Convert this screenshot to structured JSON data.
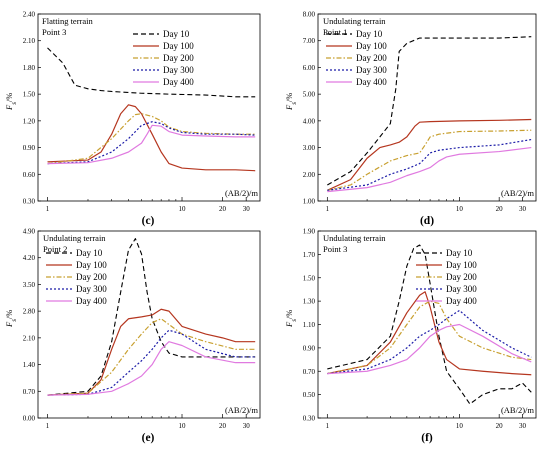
{
  "figure": {
    "legend_labels": [
      "Day 10",
      "Day 100",
      "Day 200",
      "Day 300",
      "Day 400"
    ],
    "series_colors": [
      "#000000",
      "#b5361f",
      "#c8a030",
      "#1c1ca8",
      "#e07ae0"
    ],
    "series_dash": [
      "5,3",
      "",
      "5,2,1.5,2",
      "2,2",
      ""
    ],
    "x_axis_unit": "(AB/2)/m",
    "x_tick_labels": [
      "1",
      "10",
      "20",
      "30"
    ]
  },
  "chart_data": [
    {
      "type": "line",
      "panel_label": "(c)",
      "title_lines": [
        "Flatting terrain",
        "Point 3"
      ],
      "ylabel": "F_s/%",
      "xlabel": "(AB/2)/m",
      "x_scale": "log",
      "xlim": [
        0.85,
        38
      ],
      "ylim": [
        0.3,
        2.4
      ],
      "y_ticks": [
        "0.30",
        "0.60",
        "0.90",
        "1.20",
        "1.50",
        "1.80",
        "2.10",
        "2.40"
      ],
      "x_ticks": [
        1,
        10,
        20,
        30
      ],
      "legend_position": "top-right",
      "series": [
        {
          "name": "Day 10",
          "x": [
            1,
            1.3,
            1.6,
            2,
            2.5,
            3,
            5,
            8,
            15,
            25,
            35
          ],
          "y": [
            2.02,
            1.85,
            1.6,
            1.56,
            1.54,
            1.53,
            1.51,
            1.5,
            1.49,
            1.47,
            1.47
          ]
        },
        {
          "name": "Day 100",
          "x": [
            1,
            2,
            2.5,
            3,
            3.5,
            4,
            4.5,
            5,
            6,
            7,
            8,
            10,
            15,
            25,
            35
          ],
          "y": [
            0.74,
            0.76,
            0.85,
            1.05,
            1.28,
            1.38,
            1.36,
            1.28,
            1.05,
            0.85,
            0.72,
            0.67,
            0.65,
            0.65,
            0.64
          ]
        },
        {
          "name": "Day 200",
          "x": [
            1,
            2,
            3,
            4,
            4.5,
            5,
            6,
            7,
            8,
            10,
            15,
            25,
            35
          ],
          "y": [
            0.72,
            0.78,
            1.0,
            1.2,
            1.27,
            1.28,
            1.25,
            1.2,
            1.13,
            1.08,
            1.06,
            1.05,
            1.05
          ]
        },
        {
          "name": "Day 300",
          "x": [
            1,
            2,
            3,
            4,
            5,
            6,
            7,
            8,
            10,
            15,
            25,
            35
          ],
          "y": [
            0.72,
            0.74,
            0.85,
            1.0,
            1.15,
            1.19,
            1.17,
            1.12,
            1.07,
            1.05,
            1.05,
            1.04
          ]
        },
        {
          "name": "Day 400",
          "x": [
            1,
            2,
            3,
            4,
            5,
            5.5,
            6,
            7,
            8,
            10,
            15,
            25,
            35
          ],
          "y": [
            0.72,
            0.73,
            0.78,
            0.85,
            0.95,
            1.05,
            1.15,
            1.14,
            1.08,
            1.04,
            1.03,
            1.02,
            1.02
          ]
        }
      ]
    },
    {
      "type": "line",
      "panel_label": "(d)",
      "title_lines": [
        "Undulating terrain",
        "Point 1"
      ],
      "ylabel": "F_s/%",
      "xlabel": "(AB/2)/m",
      "x_scale": "log",
      "xlim": [
        0.85,
        38
      ],
      "ylim": [
        1.0,
        8.0
      ],
      "y_ticks": [
        "1.00",
        "2.00",
        "3.00",
        "4.00",
        "5.00",
        "6.00",
        "7.00",
        "8.00"
      ],
      "x_ticks": [
        1,
        10,
        20,
        30
      ],
      "legend_position": "top-left",
      "series": [
        {
          "name": "Day 10",
          "x": [
            1,
            1.5,
            2,
            2.5,
            3,
            3.3,
            3.5,
            4,
            5,
            7,
            10,
            20,
            35
          ],
          "y": [
            1.6,
            2.1,
            2.8,
            3.4,
            3.9,
            5.2,
            6.6,
            6.9,
            7.1,
            7.1,
            7.1,
            7.1,
            7.15
          ]
        },
        {
          "name": "Day 100",
          "x": [
            1,
            1.5,
            2,
            2.5,
            3,
            3.5,
            4,
            4.6,
            5,
            6,
            10,
            20,
            35
          ],
          "y": [
            1.4,
            1.8,
            2.6,
            3.0,
            3.1,
            3.2,
            3.4,
            3.8,
            3.95,
            3.97,
            4.0,
            4.02,
            4.05
          ]
        },
        {
          "name": "Day 200",
          "x": [
            1,
            1.5,
            2,
            3,
            4,
            5,
            5.5,
            6,
            7,
            10,
            20,
            35
          ],
          "y": [
            1.4,
            1.6,
            2.0,
            2.5,
            2.7,
            2.8,
            3.1,
            3.4,
            3.5,
            3.6,
            3.62,
            3.65
          ]
        },
        {
          "name": "Day 300",
          "x": [
            1,
            2,
            3,
            4,
            5,
            5.5,
            6,
            7,
            10,
            20,
            35
          ],
          "y": [
            1.4,
            1.6,
            2.0,
            2.2,
            2.4,
            2.6,
            2.8,
            2.9,
            3.0,
            3.1,
            3.3
          ]
        },
        {
          "name": "Day 400",
          "x": [
            1,
            2,
            3,
            4,
            5,
            6,
            7,
            8,
            10,
            20,
            35
          ],
          "y": [
            1.35,
            1.5,
            1.7,
            1.95,
            2.1,
            2.25,
            2.5,
            2.65,
            2.75,
            2.85,
            3.0
          ]
        }
      ]
    },
    {
      "type": "line",
      "panel_label": "(e)",
      "title_lines": [
        "Undulating terrain",
        "Point 2"
      ],
      "ylabel": "F_s/%",
      "xlabel": "(AB/2)/m",
      "x_scale": "log",
      "xlim": [
        0.85,
        38
      ],
      "ylim": [
        0.0,
        4.9
      ],
      "y_ticks": [
        "0.00",
        "0.70",
        "1.40",
        "2.10",
        "2.80",
        "3.50",
        "4.20",
        "4.90"
      ],
      "x_ticks": [
        1,
        10,
        20,
        30
      ],
      "legend_position": "top-left",
      "series": [
        {
          "name": "Day 10",
          "x": [
            1,
            2,
            2.5,
            3,
            3.5,
            4,
            4.5,
            5,
            5.5,
            6,
            7,
            8,
            10,
            15,
            25,
            35
          ],
          "y": [
            0.6,
            0.7,
            1.1,
            2.0,
            3.3,
            4.4,
            4.7,
            4.3,
            3.3,
            2.6,
            2.0,
            1.7,
            1.6,
            1.6,
            1.6,
            1.6
          ]
        },
        {
          "name": "Day 100",
          "x": [
            1,
            2,
            2.5,
            3,
            3.5,
            4,
            5,
            6,
            7,
            8,
            10,
            15,
            20,
            25,
            35
          ],
          "y": [
            0.6,
            0.65,
            1.0,
            1.8,
            2.4,
            2.6,
            2.65,
            2.7,
            2.85,
            2.8,
            2.4,
            2.2,
            2.1,
            2.0,
            2.0
          ]
        },
        {
          "name": "Day 200",
          "x": [
            1,
            2,
            3,
            4,
            5,
            6,
            7,
            8,
            10,
            15,
            25,
            35
          ],
          "y": [
            0.6,
            0.65,
            1.2,
            1.8,
            2.2,
            2.5,
            2.6,
            2.45,
            2.2,
            2.0,
            1.8,
            1.8
          ]
        },
        {
          "name": "Day 300",
          "x": [
            1,
            2,
            3,
            4,
            5,
            6,
            7,
            8,
            10,
            15,
            25,
            35
          ],
          "y": [
            0.6,
            0.62,
            0.8,
            1.2,
            1.5,
            1.8,
            2.1,
            2.3,
            2.2,
            1.8,
            1.6,
            1.6
          ]
        },
        {
          "name": "Day 400",
          "x": [
            1,
            2,
            3,
            4,
            5,
            6,
            7,
            8,
            10,
            15,
            25,
            35
          ],
          "y": [
            0.6,
            0.62,
            0.7,
            0.9,
            1.1,
            1.4,
            1.8,
            2.0,
            1.9,
            1.6,
            1.45,
            1.45
          ]
        }
      ]
    },
    {
      "type": "line",
      "panel_label": "(f)",
      "title_lines": [
        "Undulating terrain",
        "Point 3"
      ],
      "ylabel": "F_s/%",
      "xlabel": "(AB/2)/m",
      "x_scale": "log",
      "xlim": [
        0.85,
        38
      ],
      "ylim": [
        0.3,
        1.9
      ],
      "y_ticks": [
        "0.30",
        "0.50",
        "0.70",
        "0.90",
        "1.10",
        "1.30",
        "1.50",
        "1.70",
        "1.90"
      ],
      "x_ticks": [
        1,
        10,
        20,
        30
      ],
      "legend_position": "top-right",
      "series": [
        {
          "name": "Day 10",
          "x": [
            1,
            2,
            3,
            3.5,
            4,
            4.5,
            5,
            5.5,
            6,
            7,
            8,
            10,
            12,
            15,
            20,
            25,
            30,
            35
          ],
          "y": [
            0.72,
            0.8,
            1.0,
            1.3,
            1.6,
            1.75,
            1.78,
            1.7,
            1.45,
            1.0,
            0.7,
            0.55,
            0.42,
            0.5,
            0.55,
            0.55,
            0.6,
            0.52
          ]
        },
        {
          "name": "Day 100",
          "x": [
            1,
            2,
            3,
            4,
            5,
            5.5,
            6,
            7,
            8,
            10,
            15,
            25,
            35
          ],
          "y": [
            0.68,
            0.75,
            0.95,
            1.2,
            1.35,
            1.38,
            1.25,
            0.95,
            0.8,
            0.72,
            0.7,
            0.68,
            0.67
          ]
        },
        {
          "name": "Day 200",
          "x": [
            1,
            2,
            3,
            4,
            5,
            6,
            7,
            8,
            10,
            15,
            25,
            35
          ],
          "y": [
            0.68,
            0.75,
            0.9,
            1.1,
            1.25,
            1.3,
            1.28,
            1.15,
            1.0,
            0.9,
            0.82,
            0.8
          ]
        },
        {
          "name": "Day 300",
          "x": [
            1,
            2,
            3,
            4,
            5,
            6,
            7,
            8,
            10,
            15,
            25,
            35
          ],
          "y": [
            0.68,
            0.72,
            0.8,
            0.9,
            1.0,
            1.05,
            1.1,
            1.15,
            1.22,
            1.05,
            0.9,
            0.82
          ]
        },
        {
          "name": "Day 400",
          "x": [
            1,
            2,
            3,
            4,
            5,
            6,
            7,
            8,
            10,
            15,
            25,
            35
          ],
          "y": [
            0.68,
            0.7,
            0.75,
            0.8,
            0.9,
            1.0,
            1.05,
            1.08,
            1.1,
            1.0,
            0.85,
            0.78
          ]
        }
      ]
    }
  ]
}
